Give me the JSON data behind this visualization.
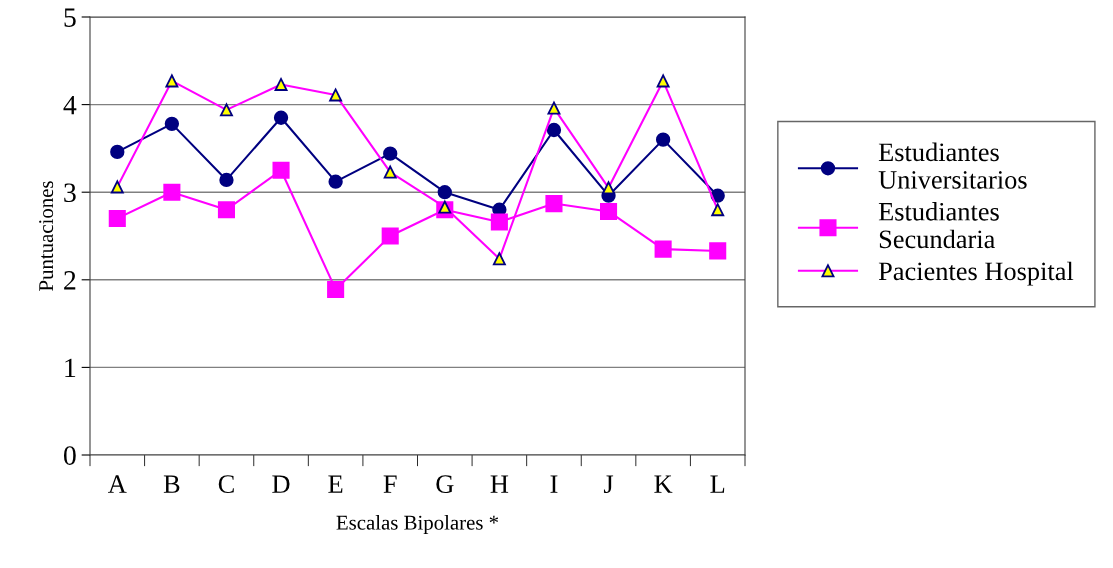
{
  "chart_data": {
    "type": "line",
    "xlabel": "Escalas Bipolares *",
    "ylabel": "Puntuaciones",
    "categories": [
      "A",
      "B",
      "C",
      "D",
      "E",
      "F",
      "G",
      "H",
      "I",
      "J",
      "K",
      "L"
    ],
    "ylim": [
      0,
      5
    ],
    "yticks": [
      0,
      1,
      2,
      3,
      4,
      5
    ],
    "grid": "y",
    "legend": "right",
    "series": [
      {
        "name": "Estudiantes\nUniversitarios",
        "color": "#000080",
        "marker": "circle",
        "values": [
          3.46,
          3.78,
          3.14,
          3.85,
          3.12,
          3.44,
          3.0,
          2.8,
          3.71,
          2.96,
          3.6,
          2.96
        ]
      },
      {
        "name": "Estudiantes\nSecundaria",
        "color": "#ff00ff",
        "marker": "square",
        "values": [
          2.7,
          3.0,
          2.8,
          3.25,
          1.89,
          2.5,
          2.8,
          2.66,
          2.87,
          2.78,
          2.35,
          2.33
        ]
      },
      {
        "name": "Pacientes Hospital",
        "color": "#ff00ff",
        "marker": "triangle",
        "values": [
          3.06,
          4.27,
          3.94,
          4.23,
          4.11,
          3.23,
          2.83,
          2.24,
          3.96,
          3.05,
          4.27,
          2.8
        ]
      }
    ]
  }
}
